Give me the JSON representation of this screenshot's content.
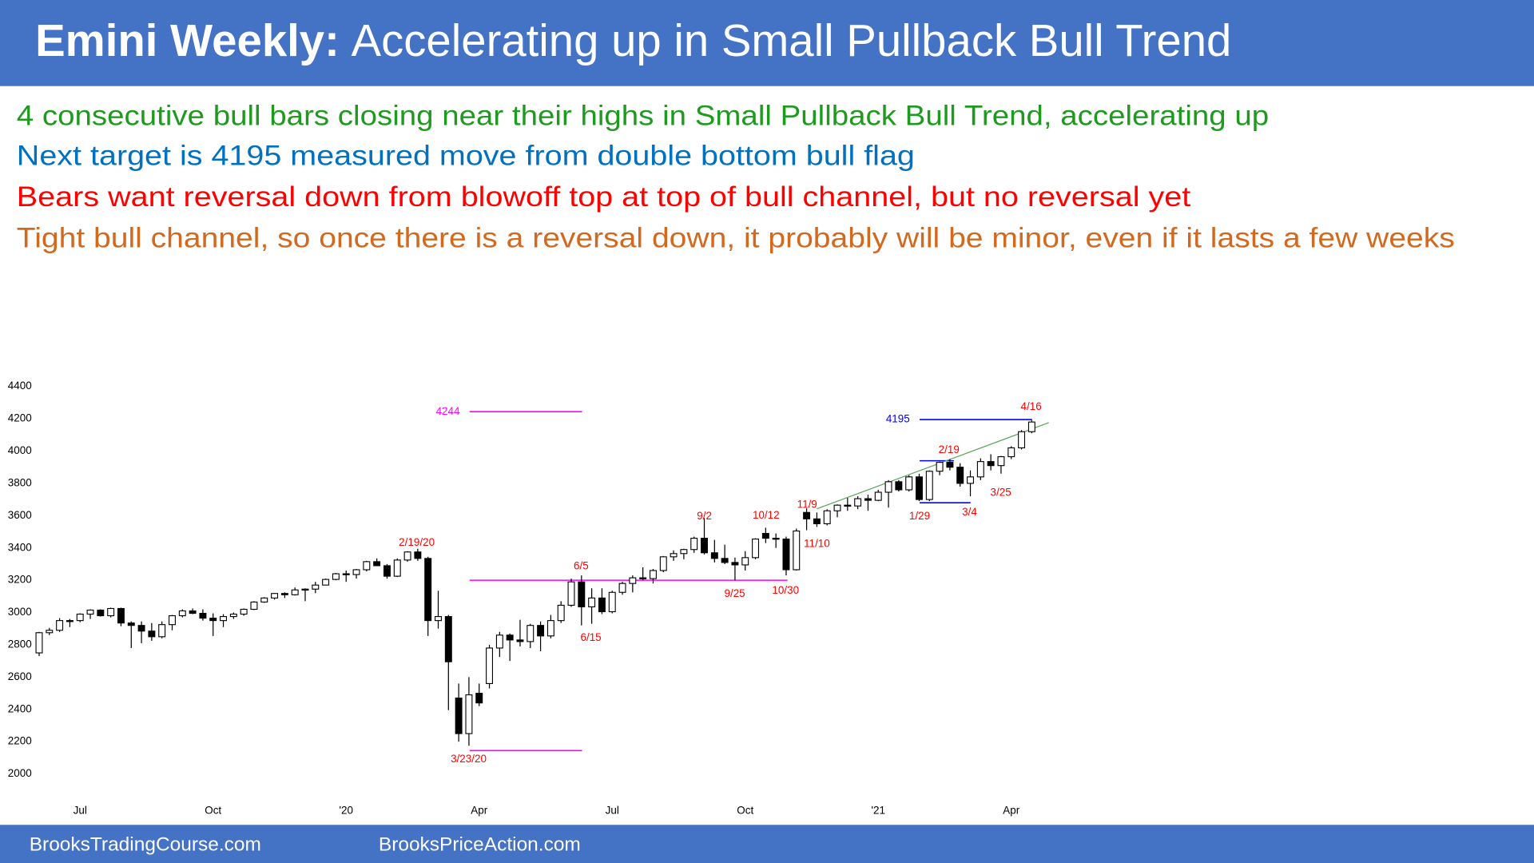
{
  "header": {
    "title_bold": "Emini Weekly:",
    "title_rest": "Accelerating up in Small Pullback Bull Trend"
  },
  "bullets": [
    {
      "text": "4 consecutive bull bars closing near their highs in Small Pullback Bull Trend, accelerating up",
      "color": "#1e9a1e"
    },
    {
      "text": "Next target is 4195 measured move from double bottom bull flag",
      "color": "#0070c0"
    },
    {
      "text": "Bears want reversal down from blowoff top at top of bull channel, but no reversal yet",
      "color": "#ff0000"
    },
    {
      "text": "Tight bull channel, so once there is a reversal down, it probably will be minor, even if it lasts a few weeks",
      "color": "#d2691e"
    }
  ],
  "footer": [
    "BrooksTradingCourse.com",
    "BrooksPriceAction.com"
  ],
  "chart_data": {
    "type": "candlestick",
    "categories": [
      null,
      null,
      null,
      null,
      "Jul",
      null,
      null,
      null,
      null,
      null,
      null,
      null,
      null,
      null,
      null,
      null,
      null,
      "Oct",
      null,
      null,
      null,
      null,
      null,
      null,
      null,
      null,
      null,
      null,
      null,
      null,
      "'20",
      null,
      null,
      null,
      null,
      null,
      null,
      null,
      null,
      null,
      null,
      null,
      null,
      "Apr",
      null,
      null,
      null,
      null,
      null,
      null,
      null,
      null,
      null,
      null,
      null,
      null,
      "Jul",
      null,
      null,
      null,
      null,
      null,
      null,
      null,
      null,
      null,
      null,
      null,
      null,
      "Oct",
      null,
      null,
      null,
      null,
      null,
      null,
      null,
      null,
      null,
      null,
      null,
      null,
      "'21",
      null,
      null,
      null,
      null,
      null,
      null,
      null,
      null,
      null,
      null,
      null,
      null,
      "Apr",
      null,
      null
    ],
    "ohlc": [
      [
        2750,
        2880,
        2730,
        2875
      ],
      [
        2875,
        2905,
        2860,
        2890
      ],
      [
        2890,
        2965,
        2880,
        2950
      ],
      [
        2950,
        2960,
        2910,
        2945
      ],
      [
        2950,
        2995,
        2940,
        2990
      ],
      [
        2990,
        3020,
        2960,
        3015
      ],
      [
        3015,
        3020,
        2975,
        2980
      ],
      [
        2980,
        3030,
        2970,
        3025
      ],
      [
        3025,
        3030,
        2915,
        2935
      ],
      [
        2935,
        2945,
        2780,
        2920
      ],
      [
        2920,
        2945,
        2810,
        2885
      ],
      [
        2885,
        2935,
        2825,
        2850
      ],
      [
        2850,
        2945,
        2840,
        2925
      ],
      [
        2925,
        2985,
        2890,
        2980
      ],
      [
        2980,
        3020,
        2970,
        3010
      ],
      [
        3010,
        3025,
        2990,
        2995
      ],
      [
        2995,
        3020,
        2950,
        2965
      ],
      [
        2965,
        2995,
        2855,
        2950
      ],
      [
        2950,
        2990,
        2910,
        2975
      ],
      [
        2975,
        3000,
        2960,
        2990
      ],
      [
        2990,
        3025,
        2980,
        3020
      ],
      [
        3020,
        3070,
        3015,
        3065
      ],
      [
        3065,
        3095,
        3060,
        3090
      ],
      [
        3090,
        3120,
        3080,
        3118
      ],
      [
        3118,
        3125,
        3090,
        3110
      ],
      [
        3110,
        3155,
        3105,
        3140
      ],
      [
        3140,
        3150,
        3070,
        3145
      ],
      [
        3145,
        3190,
        3120,
        3170
      ],
      [
        3170,
        3210,
        3170,
        3205
      ],
      [
        3205,
        3245,
        3200,
        3240
      ],
      [
        3240,
        3260,
        3190,
        3235
      ],
      [
        3235,
        3270,
        3210,
        3265
      ],
      [
        3265,
        3320,
        3255,
        3315
      ],
      [
        3315,
        3335,
        3290,
        3290
      ],
      [
        3290,
        3300,
        3210,
        3225
      ],
      [
        3225,
        3335,
        3220,
        3325
      ],
      [
        3325,
        3380,
        3315,
        3375
      ],
      [
        3375,
        3395,
        3320,
        3335
      ],
      [
        3335,
        3345,
        2855,
        2950
      ],
      [
        2950,
        3135,
        2900,
        2975
      ],
      [
        2975,
        2985,
        2395,
        2695
      ],
      [
        2470,
        2560,
        2200,
        2250
      ],
      [
        2250,
        2600,
        2175,
        2490
      ],
      [
        2500,
        2560,
        2420,
        2440
      ],
      [
        2560,
        2800,
        2530,
        2780
      ],
      [
        2780,
        2880,
        2725,
        2860
      ],
      [
        2860,
        2870,
        2700,
        2830
      ],
      [
        2830,
        2955,
        2790,
        2820
      ],
      [
        2820,
        2930,
        2780,
        2920
      ],
      [
        2920,
        2945,
        2760,
        2855
      ],
      [
        2855,
        2985,
        2840,
        2950
      ],
      [
        2950,
        3070,
        2935,
        3045
      ],
      [
        3045,
        3210,
        3035,
        3190
      ],
      [
        3190,
        3230,
        2920,
        3035
      ],
      [
        3035,
        3150,
        2930,
        3090
      ],
      [
        3090,
        3150,
        2990,
        3005
      ],
      [
        3005,
        3135,
        2995,
        3125
      ],
      [
        3125,
        3190,
        3110,
        3180
      ],
      [
        3180,
        3230,
        3125,
        3215
      ],
      [
        3215,
        3280,
        3200,
        3210
      ],
      [
        3210,
        3270,
        3180,
        3260
      ],
      [
        3260,
        3350,
        3250,
        3345
      ],
      [
        3345,
        3385,
        3320,
        3365
      ],
      [
        3365,
        3395,
        3330,
        3390
      ],
      [
        3390,
        3470,
        3370,
        3460
      ],
      [
        3460,
        3585,
        3360,
        3370
      ],
      [
        3370,
        3450,
        3310,
        3335
      ],
      [
        3335,
        3420,
        3300,
        3310
      ],
      [
        3310,
        3340,
        3200,
        3295
      ],
      [
        3295,
        3380,
        3260,
        3340
      ],
      [
        3340,
        3460,
        3330,
        3455
      ],
      [
        3490,
        3525,
        3430,
        3460
      ],
      [
        3460,
        3490,
        3400,
        3455
      ],
      [
        3455,
        3470,
        3230,
        3265
      ],
      [
        3265,
        3520,
        3260,
        3505
      ],
      [
        3620,
        3645,
        3510,
        3580
      ],
      [
        3580,
        3620,
        3530,
        3550
      ],
      [
        3550,
        3640,
        3540,
        3630
      ],
      [
        3630,
        3670,
        3590,
        3665
      ],
      [
        3665,
        3710,
        3630,
        3660
      ],
      [
        3660,
        3720,
        3640,
        3705
      ],
      [
        3705,
        3730,
        3630,
        3695
      ],
      [
        3695,
        3760,
        3690,
        3745
      ],
      [
        3745,
        3820,
        3650,
        3810
      ],
      [
        3810,
        3820,
        3750,
        3760
      ],
      [
        3760,
        3850,
        3750,
        3840
      ],
      [
        3840,
        3860,
        3690,
        3700
      ],
      [
        3700,
        3880,
        3690,
        3875
      ],
      [
        3875,
        3935,
        3850,
        3930
      ],
      [
        3930,
        3950,
        3880,
        3900
      ],
      [
        3900,
        3925,
        3780,
        3800
      ],
      [
        3800,
        3880,
        3720,
        3840
      ],
      [
        3840,
        3955,
        3820,
        3935
      ],
      [
        3935,
        3980,
        3880,
        3910
      ],
      [
        3910,
        3970,
        3860,
        3965
      ],
      [
        3965,
        4030,
        3950,
        4020
      ],
      [
        4020,
        4130,
        4010,
        4120
      ],
      [
        4120,
        4190,
        4110,
        4180
      ]
    ],
    "ylim": [
      2000,
      4400
    ],
    "yticks": [
      2000,
      2200,
      2400,
      2600,
      2800,
      3000,
      3200,
      3400,
      3600,
      3800,
      4000,
      4200,
      4400
    ],
    "reference_lines": [
      {
        "value": 4244,
        "label": "4244",
        "color": "#ff00ff"
      },
      {
        "value": 3200,
        "color": "#ff00ff"
      },
      {
        "value": 2145,
        "color": "#ff00ff"
      },
      {
        "value": 4195,
        "label": "4195",
        "color": "#0000ff"
      },
      {
        "value": 3940,
        "color": "#0000ff"
      },
      {
        "value": 3680,
        "color": "#0000ff"
      }
    ],
    "annotation_color": "#ff0000",
    "annotations": [
      "2/19/20",
      "3/23/20",
      "6/5",
      "6/15",
      "9/2",
      "9/25",
      "10/12",
      "10/30",
      "11/9",
      "11/10",
      "1/29",
      "2/19",
      "3/4",
      "3/25",
      "4/16"
    ]
  }
}
